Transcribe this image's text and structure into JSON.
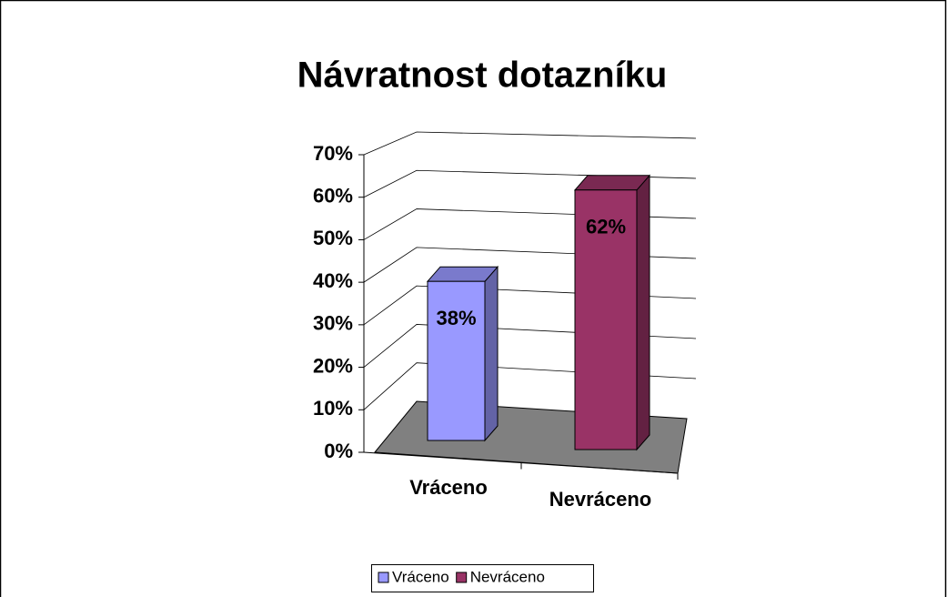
{
  "chart_data": {
    "type": "bar",
    "title": "Návratnost dotazníku",
    "categories": [
      "Vráceno",
      "Nevráceno"
    ],
    "values": [
      38,
      62
    ],
    "value_labels": [
      "38%",
      "62%"
    ],
    "colors": [
      "#9999ff",
      "#993366"
    ],
    "ylim": [
      0,
      70
    ],
    "yticks": [
      {
        "value": 0,
        "label": "0%"
      },
      {
        "value": 10,
        "label": "10%"
      },
      {
        "value": 20,
        "label": "20%"
      },
      {
        "value": 30,
        "label": "30%"
      },
      {
        "value": 40,
        "label": "40%"
      },
      {
        "value": 50,
        "label": "50%"
      },
      {
        "value": 60,
        "label": "60%"
      },
      {
        "value": 70,
        "label": "70%"
      }
    ],
    "grid": true,
    "legend": "bottom"
  }
}
